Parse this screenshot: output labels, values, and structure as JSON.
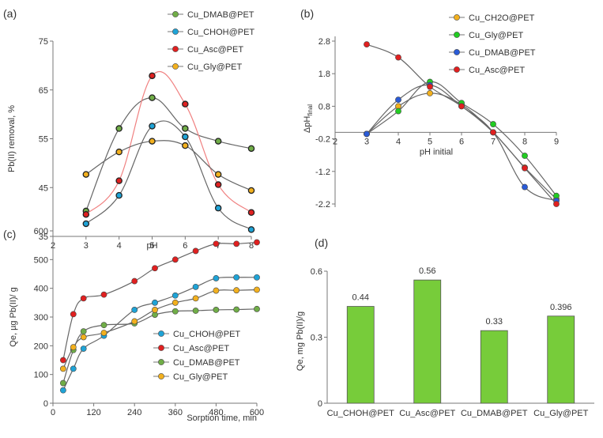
{
  "chart_data": [
    {
      "panel": "(a)",
      "type": "line",
      "xlabel": "pH",
      "ylabel": "Pb(II) removal, %",
      "xlim": [
        2,
        8
      ],
      "ylim": [
        35,
        75
      ],
      "xticks": [
        2,
        3,
        4,
        5,
        6,
        7,
        8
      ],
      "yticks": [
        35,
        45,
        55,
        65,
        75
      ],
      "x": [
        3,
        4,
        5,
        6,
        7,
        8
      ],
      "series": [
        {
          "name": "Cu_DMAB@PET",
          "color": "#70ad47",
          "values": [
            40.2,
            57.1,
            63.4,
            57.1,
            54.5,
            53.0
          ]
        },
        {
          "name": "Cu_CHOH@PET",
          "color": "#1fa3d6",
          "values": [
            37.6,
            43.4,
            57.6,
            55.4,
            40.8,
            36.4
          ]
        },
        {
          "name": "Cu_Asc@PET",
          "color": "#e02020",
          "values": [
            39.5,
            46.4,
            67.9,
            62.1,
            45.6,
            39.9
          ]
        },
        {
          "name": "Cu_Gly@PET",
          "color": "#f2b01e",
          "values": [
            47.7,
            52.3,
            54.5,
            53.6,
            47.7,
            44.4
          ]
        }
      ],
      "legend": "top-right"
    },
    {
      "panel": "(b)",
      "type": "line",
      "xlabel": "pH initial",
      "ylabel": "ΔpH",
      "ylabel_sub": "final",
      "xlim": [
        2,
        9
      ],
      "ylim": [
        -2.2,
        2.8
      ],
      "xticks": [
        2,
        3,
        4,
        5,
        6,
        7,
        8,
        9
      ],
      "yticks": [
        2.8,
        1.8,
        0.8,
        -0.2,
        -1.2,
        -2.2
      ],
      "x": [
        3,
        4,
        5,
        6,
        7,
        8,
        9
      ],
      "series": [
        {
          "name": "Cu_CH2O@PET",
          "color": "#f2b01e",
          "values": [
            -0.05,
            0.8,
            1.2,
            0.85,
            0.0,
            -1.08,
            -2.05
          ]
        },
        {
          "name": "Cu_Gly@PET",
          "color": "#22cc22",
          "values": [
            -0.05,
            0.65,
            1.55,
            0.9,
            0.25,
            -0.72,
            -1.95
          ]
        },
        {
          "name": "Cu_DMAB@PET",
          "color": "#2a5bd7",
          "values": [
            -0.05,
            1.0,
            1.45,
            0.8,
            0.0,
            -1.68,
            -2.1
          ]
        },
        {
          "name": "Cu_Asc@PET",
          "color": "#e02020",
          "values": [
            2.7,
            2.3,
            1.4,
            0.8,
            0.0,
            -1.1,
            -2.2
          ]
        }
      ],
      "legend": "top-right"
    },
    {
      "panel": "(c)",
      "type": "line",
      "xlabel": "Sorption time, min",
      "ylabel": "Qe, µg Pb(II)/ g",
      "xlim": [
        0,
        600
      ],
      "ylim": [
        0,
        600
      ],
      "xticks": [
        0,
        120,
        240,
        360,
        480,
        600
      ],
      "yticks": [
        0,
        100,
        200,
        300,
        400,
        500,
        600
      ],
      "x": [
        30,
        60,
        90,
        150,
        240,
        300,
        360,
        420,
        480,
        540,
        600
      ],
      "series": [
        {
          "name": "Cu_CHOH@PET",
          "color": "#1fa3d6",
          "values": [
            45,
            120,
            190,
            235,
            325,
            350,
            375,
            405,
            435,
            438,
            438
          ]
        },
        {
          "name": "Cu_Asc@PET",
          "color": "#e02020",
          "values": [
            150,
            310,
            365,
            378,
            425,
            470,
            500,
            530,
            555,
            555,
            560
          ]
        },
        {
          "name": "Cu_DMAB@PET",
          "color": "#70ad47",
          "values": [
            70,
            185,
            250,
            272,
            278,
            308,
            320,
            322,
            325,
            326,
            328
          ]
        },
        {
          "name": "Cu_Gly@PET",
          "color": "#f2b01e",
          "values": [
            120,
            195,
            230,
            245,
            285,
            325,
            350,
            365,
            392,
            393,
            395
          ]
        }
      ],
      "legend": "bottom-right"
    },
    {
      "panel": "(d)",
      "type": "bar",
      "ylabel": "Qe, mg Pb(II)/g",
      "ylim": [
        0,
        0.6
      ],
      "yticks": [
        "0",
        "0.3",
        "0.6"
      ],
      "categories": [
        "Cu_CHOH@PET",
        "Cu_Asc@PET",
        "Cu_DMAB@PET",
        "Cu_Gly@PET"
      ],
      "values": [
        0.44,
        0.56,
        0.33,
        0.396
      ],
      "labels": [
        "0.44",
        "0.56",
        "0.33",
        "0.396"
      ],
      "color": "#77cc3a"
    }
  ]
}
